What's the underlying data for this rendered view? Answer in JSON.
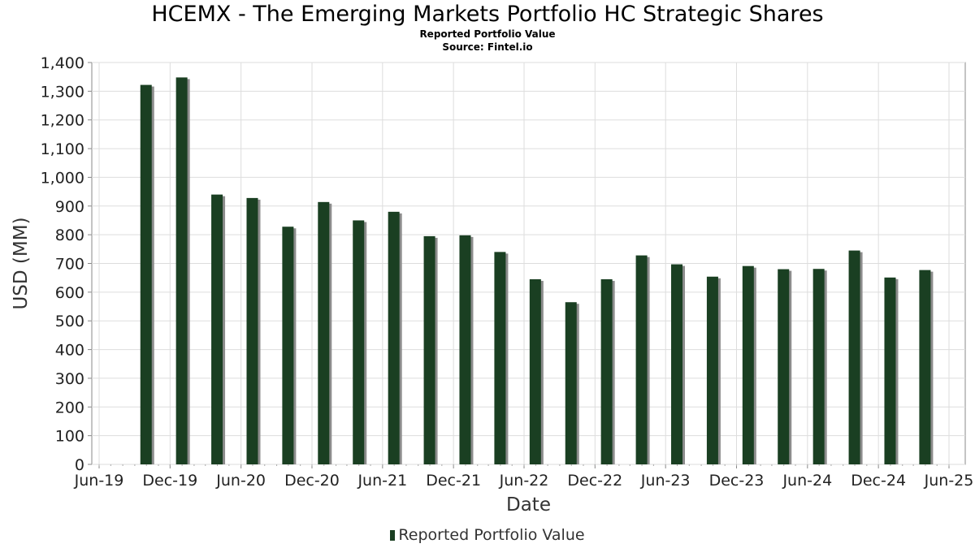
{
  "chart_data": {
    "type": "bar",
    "title": "HCEMX - The Emerging Markets Portfolio HC Strategic Shares",
    "subtitle": [
      "Reported Portfolio Value",
      "Source: Fintel.io"
    ],
    "xlabel": "Date",
    "ylabel": "USD (MM)",
    "x_axis_type": "date",
    "x_range": [
      "2019-06-01",
      "2025-06-01"
    ],
    "x_ticks": [
      "Jun-19",
      "Dec-19",
      "Jun-20",
      "Dec-20",
      "Jun-21",
      "Dec-21",
      "Jun-22",
      "Dec-22",
      "Jun-23",
      "Dec-23",
      "Jun-24",
      "Dec-24",
      "Jun-25"
    ],
    "ylim": [
      0,
      1400
    ],
    "y_ticks": [
      "0",
      "100",
      "200",
      "300",
      "400",
      "500",
      "600",
      "700",
      "800",
      "900",
      "1,000",
      "1,100",
      "1,200",
      "1,300",
      "1,400"
    ],
    "grid": true,
    "legend_position": "bottom",
    "series": [
      {
        "name": "Reported Portfolio Value",
        "color": "#1a3f22",
        "x": [
          "2019-09-30",
          "2019-12-31",
          "2020-03-31",
          "2020-06-30",
          "2020-09-30",
          "2020-12-31",
          "2021-03-31",
          "2021-06-30",
          "2021-09-30",
          "2021-12-31",
          "2022-03-31",
          "2022-06-30",
          "2022-09-30",
          "2022-12-31",
          "2023-03-31",
          "2023-06-30",
          "2023-09-30",
          "2023-12-31",
          "2024-03-31",
          "2024-06-30",
          "2024-09-30",
          "2024-12-31",
          "2025-03-31"
        ],
        "values": [
          1322,
          1348,
          940,
          928,
          828,
          914,
          850,
          880,
          795,
          798,
          740,
          645,
          565,
          645,
          728,
          697,
          654,
          691,
          680,
          681,
          745,
          651,
          677
        ]
      }
    ]
  }
}
